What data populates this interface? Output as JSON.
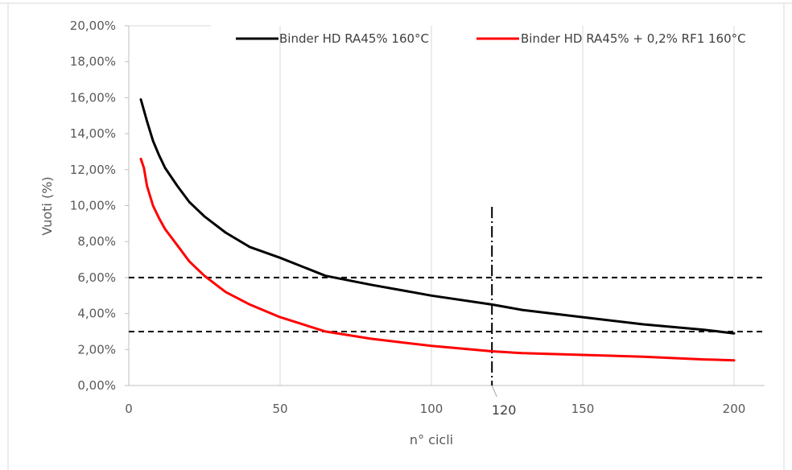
{
  "chart_data": {
    "type": "line",
    "title": "",
    "xlabel": "n° cicli",
    "ylabel": "Vuoti (%)",
    "xlim": [
      0,
      210
    ],
    "ylim": [
      0,
      0.2
    ],
    "x_ticks": [
      "0",
      "50",
      "100",
      "150",
      "200"
    ],
    "x_tick_values": [
      0,
      50,
      100,
      150,
      200
    ],
    "y_ticks": [
      "0,00%",
      "2,00%",
      "4,00%",
      "6,00%",
      "8,00%",
      "10,00%",
      "12,00%",
      "14,00%",
      "16,00%",
      "18,00%",
      "20,00%"
    ],
    "y_tick_values": [
      0,
      0.02,
      0.04,
      0.06,
      0.08,
      0.1,
      0.12,
      0.14,
      0.16,
      0.18,
      0.2
    ],
    "grid": "vertical",
    "legend_position": "top-right",
    "series": [
      {
        "name": "Binder HD RA45% 160°C",
        "color": "#000000",
        "x": [
          4,
          6,
          8,
          10,
          12,
          16,
          20,
          25,
          32,
          40,
          50,
          65,
          80,
          100,
          120,
          130,
          150,
          170,
          190,
          200
        ],
        "y": [
          0.159,
          0.147,
          0.136,
          0.128,
          0.121,
          0.111,
          0.102,
          0.094,
          0.085,
          0.077,
          0.071,
          0.061,
          0.056,
          0.05,
          0.045,
          0.042,
          0.038,
          0.034,
          0.031,
          0.029
        ]
      },
      {
        "name": "Binder HD RA45% + 0,2% RF1 160°C",
        "color": "#ff0000",
        "x": [
          4,
          5,
          6,
          8,
          10,
          12,
          16,
          20,
          25,
          32,
          40,
          50,
          65,
          80,
          100,
          120,
          130,
          150,
          170,
          190,
          200
        ],
        "y": [
          0.126,
          0.121,
          0.111,
          0.1,
          0.093,
          0.087,
          0.078,
          0.069,
          0.061,
          0.052,
          0.045,
          0.038,
          0.03,
          0.026,
          0.022,
          0.019,
          0.018,
          0.017,
          0.016,
          0.0145,
          0.014
        ]
      }
    ],
    "reference_lines": {
      "horizontal_y": [
        0.06,
        0.03
      ],
      "vertical_x": 120,
      "vertical_label": "120"
    }
  }
}
